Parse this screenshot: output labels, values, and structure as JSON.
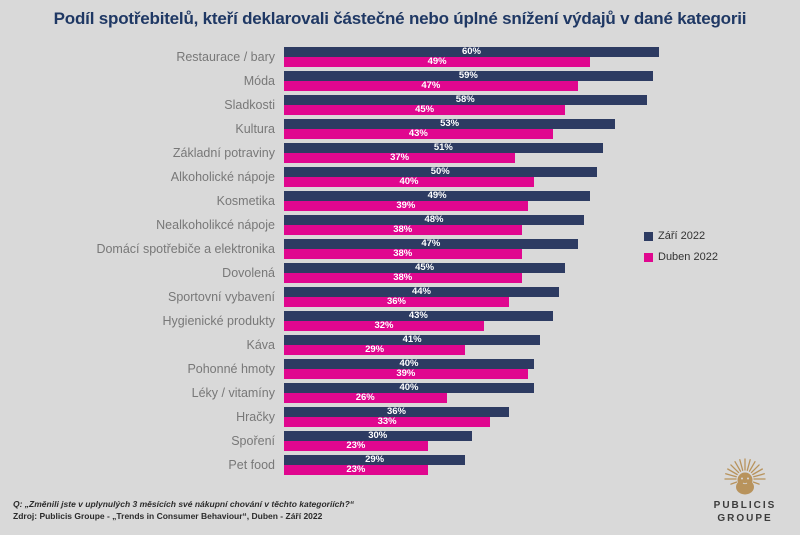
{
  "title": "Podíl spotřebitelů, kteří deklarovali částečné nebo úplné snížení výdajů v dané kategorii",
  "chart_data": {
    "type": "bar",
    "orientation": "horizontal",
    "title": "Podíl spotřebitelů, kteří deklarovali částečné nebo úplné snížení výdajů v dané kategorii",
    "categories": [
      "Restaurace / bary",
      "Móda",
      "Sladkosti",
      "Kultura",
      "Základní potraviny",
      "Alkoholické nápoje",
      "Kosmetika",
      "Nealkoholikcé nápoje",
      "Domácí spotřebiče a elektronika",
      "Dovolená",
      "Sportovní vybavení",
      "Hygienické produkty",
      "Káva",
      "Pohonné hmoty",
      "Léky / vitamíny",
      "Hračky",
      "Spoření",
      "Pet food"
    ],
    "series": [
      {
        "name": "Září 2022",
        "key": "zari-2022",
        "color": "#2d3b62",
        "values": [
          60,
          59,
          58,
          53,
          51,
          50,
          49,
          48,
          47,
          45,
          44,
          43,
          41,
          40,
          40,
          36,
          30,
          29
        ]
      },
      {
        "name": "Duben 2022",
        "key": "duben-2022",
        "color": "#e0078f",
        "values": [
          49,
          47,
          45,
          43,
          37,
          40,
          39,
          38,
          38,
          38,
          36,
          32,
          29,
          39,
          26,
          33,
          23,
          23
        ]
      }
    ],
    "value_suffix": "%",
    "value_labels": "inside-center",
    "xlim": [
      0,
      80
    ],
    "grid": false,
    "legend_position": "right-middle"
  },
  "footer": {
    "question": "Q: „Změnili jste v uplynulých 3 měsících své nákupní chování v těchto kategoriích?“",
    "source": "Zdroj: Publicis Groupe - „Trends in Consumer Behaviour“, Duben - Září 2022"
  },
  "logo": {
    "name": "Publicis Groupe",
    "line1": "PUBLICIS",
    "line2": "GROUPE"
  },
  "colors": {
    "background": "#d9d9d9",
    "title": "#1f3864",
    "category_label": "#787878",
    "value_label": "#ffffff",
    "footer_text": "#2b2b2b",
    "logo_gold": "#b8935c",
    "logo_text": "#3c3c3c"
  }
}
